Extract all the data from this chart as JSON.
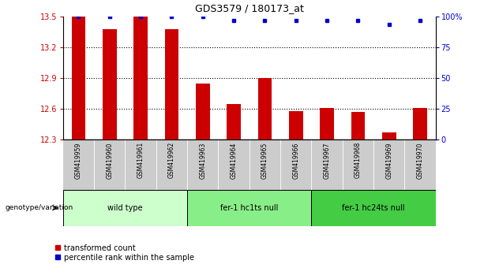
{
  "title": "GDS3579 / 180173_at",
  "samples": [
    "GSM419959",
    "GSM419960",
    "GSM419961",
    "GSM419962",
    "GSM419963",
    "GSM419964",
    "GSM419965",
    "GSM419966",
    "GSM419967",
    "GSM419968",
    "GSM419969",
    "GSM419970"
  ],
  "red_values": [
    13.5,
    13.38,
    13.5,
    13.38,
    12.85,
    12.65,
    12.9,
    12.58,
    12.61,
    12.57,
    12.37,
    12.61
  ],
  "blue_values": [
    100,
    100,
    100,
    100,
    100,
    97,
    97,
    97,
    97,
    97,
    94,
    97
  ],
  "ylim_left": [
    12.3,
    13.5
  ],
  "yticks_left": [
    12.3,
    12.6,
    12.9,
    13.2,
    13.5
  ],
  "yticks_right": [
    0,
    25,
    50,
    75,
    100
  ],
  "grid_yticks": [
    12.6,
    12.9,
    13.2
  ],
  "groups": [
    {
      "label": "wild type",
      "start": 0,
      "end": 4,
      "color": "#ccffcc"
    },
    {
      "label": "fer-1 hc1ts null",
      "start": 4,
      "end": 8,
      "color": "#88ee88"
    },
    {
      "label": "fer-1 hc24ts null",
      "start": 8,
      "end": 12,
      "color": "#44cc44"
    }
  ],
  "bar_color": "#cc0000",
  "dot_color": "#0000cc",
  "bg_color": "#ffffff",
  "grid_color": "#000000",
  "sample_bg": "#cccccc",
  "ylabel_left_color": "#cc0000",
  "ylabel_right_color": "#0000cc",
  "genotype_label": "genotype/variation",
  "legend_red": "transformed count",
  "legend_blue": "percentile rank within the sample",
  "bar_width": 0.45
}
